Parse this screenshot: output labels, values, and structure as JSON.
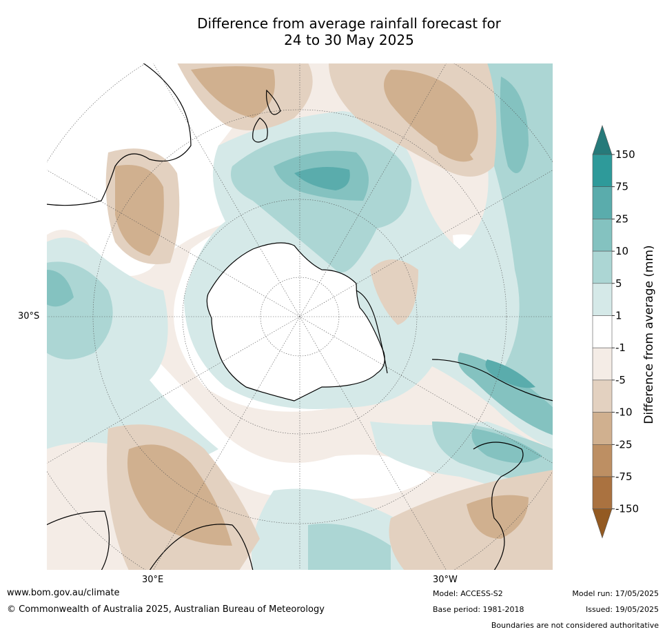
{
  "title": {
    "line1": "Difference from average rainfall forecast for",
    "line2": "24 to 30 May 2025"
  },
  "map": {
    "lat_label": "30°S",
    "lon_labels": [
      "30°E",
      "30°W"
    ]
  },
  "colorbar": {
    "label": "Difference from average (mm)",
    "ticks": [
      "150",
      "75",
      "25",
      "10",
      "5",
      "1",
      "-1",
      "-5",
      "-10",
      "-25",
      "-75",
      "-150"
    ],
    "colors": [
      "#267a7a",
      "#2e9a9a",
      "#5aacac",
      "#84c2c0",
      "#acd6d4",
      "#d5e9e8",
      "#ffffff",
      "#f4ece6",
      "#e3d1c0",
      "#d0b08f",
      "#bd8f63",
      "#aa7240",
      "#935a22"
    ]
  },
  "footer": {
    "website": "www.bom.gov.au/climate",
    "copyright": "© Commonwealth of Australia 2025, Australian Bureau of Meteorology",
    "model": "Model: ACCESS-S2",
    "base_period": "Base period: 1981-2018",
    "model_run": "Model run: 17/05/2025",
    "issued": "Issued: 19/05/2025",
    "disclaimer": "Boundaries are not considered authoritative"
  }
}
